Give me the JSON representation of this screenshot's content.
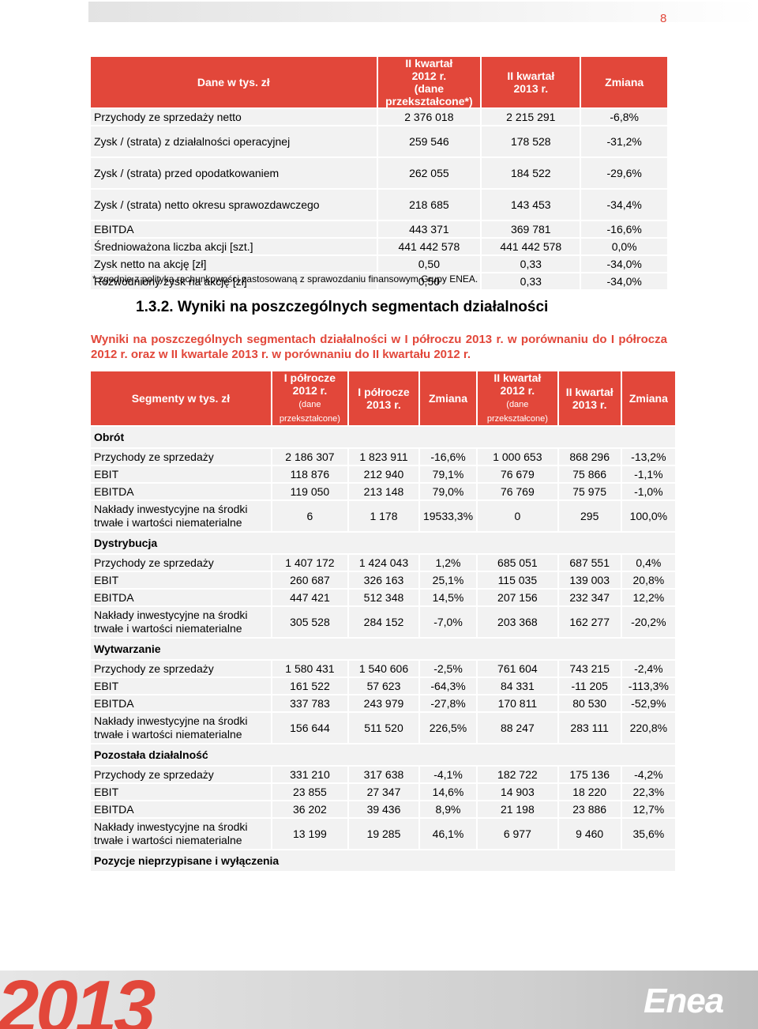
{
  "page_number": "8",
  "table1": {
    "header": [
      {
        "lines": [
          "Dane w tys. zł"
        ]
      },
      {
        "lines": [
          "II kwartał",
          "2012 r.",
          "(dane",
          "przekształcone*)"
        ]
      },
      {
        "lines": [
          "II kwartał",
          "2013 r."
        ]
      },
      {
        "lines": [
          "Zmiana"
        ]
      }
    ],
    "rows": [
      [
        "Przychody ze sprzedaży netto",
        "2 376 018",
        "2 215 291",
        "-6,8%"
      ],
      [
        "Zysk / (strata) z działalności operacyjnej",
        "259 546",
        "178 528",
        "-31,2%"
      ],
      [
        "Zysk / (strata) przed opodatkowaniem",
        "262 055",
        "184 522",
        "-29,6%"
      ],
      [
        "Zysk / (strata) netto okresu sprawozdawczego",
        "218 685",
        "143 453",
        "-34,4%"
      ],
      [
        "EBITDA",
        "443 371",
        "369 781",
        "-16,6%"
      ],
      [
        "Średnioważona liczba akcji [szt.]",
        "441 442 578",
        "441 442 578",
        "0,0%"
      ],
      [
        "Zysk netto na akcję [zł]",
        "0,50",
        "0,33",
        "-34,0%"
      ],
      [
        "Rozwodniony zysk na akcję [zł]",
        "0,50",
        "0,33",
        "-34,0%"
      ]
    ]
  },
  "footnote": "* zgodnie z polityką rachunkowości zastosowaną z sprawozdaniu finansowym Grupy ENEA.",
  "section_title": "1.3.2. Wyniki na poszczególnych segmentach działalności",
  "intro": "Wyniki na poszczególnych segmentach działalności w I półroczu 2013 r. w porównaniu do I półrocza 2012 r. oraz w II kwartale 2013 r. w porównaniu do II kwartału 2012 r.",
  "table2": {
    "header": [
      {
        "lines": [
          "Segmenty w tys. zł"
        ]
      },
      {
        "lines": [
          "I półrocze",
          "2012 r."
        ],
        "note": "(dane przekształcone)"
      },
      {
        "lines": [
          "I półrocze",
          "2013 r."
        ]
      },
      {
        "lines": [
          "Zmiana"
        ]
      },
      {
        "lines": [
          "II kwartał",
          "2012 r."
        ],
        "note": "(dane przekształcone)"
      },
      {
        "lines": [
          "II kwartał",
          "2013 r."
        ]
      },
      {
        "lines": [
          "Zmiana"
        ]
      }
    ],
    "groups": [
      {
        "name": "Obrót",
        "rows": [
          [
            "Przychody ze sprzedaży",
            "2 186 307",
            "1 823 911",
            "-16,6%",
            "1 000 653",
            "868 296",
            "-13,2%"
          ],
          [
            "EBIT",
            "118 876",
            "212 940",
            "79,1%",
            "76 679",
            "75 866",
            "-1,1%"
          ],
          [
            "EBITDA",
            "119 050",
            "213 148",
            "79,0%",
            "76 769",
            "75 975",
            "-1,0%"
          ],
          [
            "Nakłady inwestycyjne na środki trwałe i wartości niematerialne",
            "6",
            "1 178",
            "19533,3%",
            "0",
            "295",
            "100,0%"
          ]
        ]
      },
      {
        "name": "Dystrybucja",
        "rows": [
          [
            "Przychody ze sprzedaży",
            "1 407 172",
            "1 424 043",
            "1,2%",
            "685 051",
            "687 551",
            "0,4%"
          ],
          [
            "EBIT",
            "260 687",
            "326 163",
            "25,1%",
            "115 035",
            "139 003",
            "20,8%"
          ],
          [
            "EBITDA",
            "447 421",
            "512 348",
            "14,5%",
            "207 156",
            "232 347",
            "12,2%"
          ],
          [
            "Nakłady inwestycyjne na środki trwałe i wartości niematerialne",
            "305 528",
            "284 152",
            "-7,0%",
            "203 368",
            "162 277",
            "-20,2%"
          ]
        ]
      },
      {
        "name": "Wytwarzanie",
        "rows": [
          [
            "Przychody ze sprzedaży",
            "1 580 431",
            "1 540 606",
            "-2,5%",
            "761 604",
            "743 215",
            "-2,4%"
          ],
          [
            "EBIT",
            "161 522",
            "57 623",
            "-64,3%",
            "84 331",
            "-11 205",
            "-113,3%"
          ],
          [
            "EBITDA",
            "337 783",
            "243 979",
            "-27,8%",
            "170 811",
            "80 530",
            "-52,9%"
          ],
          [
            "Nakłady inwestycyjne na środki trwałe i wartości niematerialne",
            "156 644",
            "511 520",
            "226,5%",
            "88 247",
            "283 111",
            "220,8%"
          ]
        ]
      },
      {
        "name": "Pozostała działalność",
        "rows": [
          [
            "Przychody ze sprzedaży",
            "331 210",
            "317 638",
            "-4,1%",
            "182 722",
            "175 136",
            "-4,2%"
          ],
          [
            "EBIT",
            "23 855",
            "27 347",
            "14,6%",
            "14 903",
            "18 220",
            "22,3%"
          ],
          [
            "EBITDA",
            "36 202",
            "39 436",
            "8,9%",
            "21 198",
            "23 886",
            "12,7%"
          ],
          [
            "Nakłady inwestycyjne na środki trwałe i wartości niematerialne",
            "13 199",
            "19 285",
            "46,1%",
            "6 977",
            "9 460",
            "35,6%"
          ]
        ]
      },
      {
        "name": "Pozycje nieprzypisane i wyłączenia",
        "rows": []
      }
    ]
  },
  "footer": {
    "year": "2013",
    "logo": "Enea"
  }
}
